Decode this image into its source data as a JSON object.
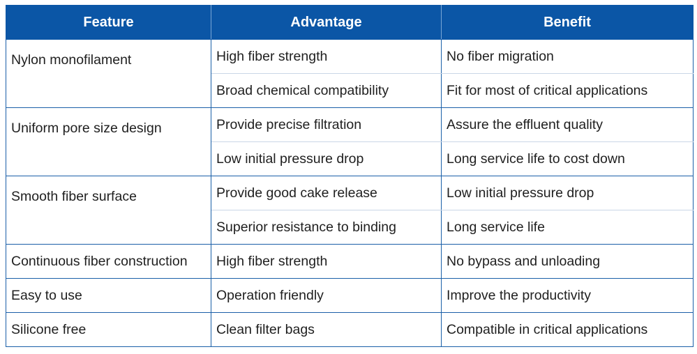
{
  "table": {
    "headers": [
      "Feature",
      "Advantage",
      "Benefit"
    ],
    "rows": [
      {
        "feature": "Nylon monofilament",
        "items": [
          {
            "advantage": "High fiber strength",
            "benefit": "No fiber migration"
          },
          {
            "advantage": "Broad chemical compatibility",
            "benefit": "Fit for most of critical applications"
          }
        ]
      },
      {
        "feature": "Uniform pore size design",
        "items": [
          {
            "advantage": "Provide precise filtration",
            "benefit": "Assure the effluent quality"
          },
          {
            "advantage": "Low initial pressure drop",
            "benefit": "Long service life to cost down"
          }
        ]
      },
      {
        "feature": "Smooth fiber surface",
        "items": [
          {
            "advantage": "Provide good cake release",
            "benefit": "Low initial pressure drop"
          },
          {
            "advantage": "Superior resistance to binding",
            "benefit": "Long service life"
          }
        ]
      },
      {
        "feature": "Continuous fiber construction",
        "items": [
          {
            "advantage": "High fiber strength",
            "benefit": "No bypass and unloading"
          }
        ]
      },
      {
        "feature": "Easy to use",
        "items": [
          {
            "advantage": "Operation friendly",
            "benefit": "Improve the productivity"
          }
        ]
      },
      {
        "feature": "Silicone free",
        "items": [
          {
            "advantage": "Clean filter bags",
            "benefit": "Compatible in critical applications"
          }
        ]
      }
    ]
  },
  "colors": {
    "header_bg": "#0b56a6",
    "header_text": "#ffffff",
    "border": "#1a5fa8"
  }
}
